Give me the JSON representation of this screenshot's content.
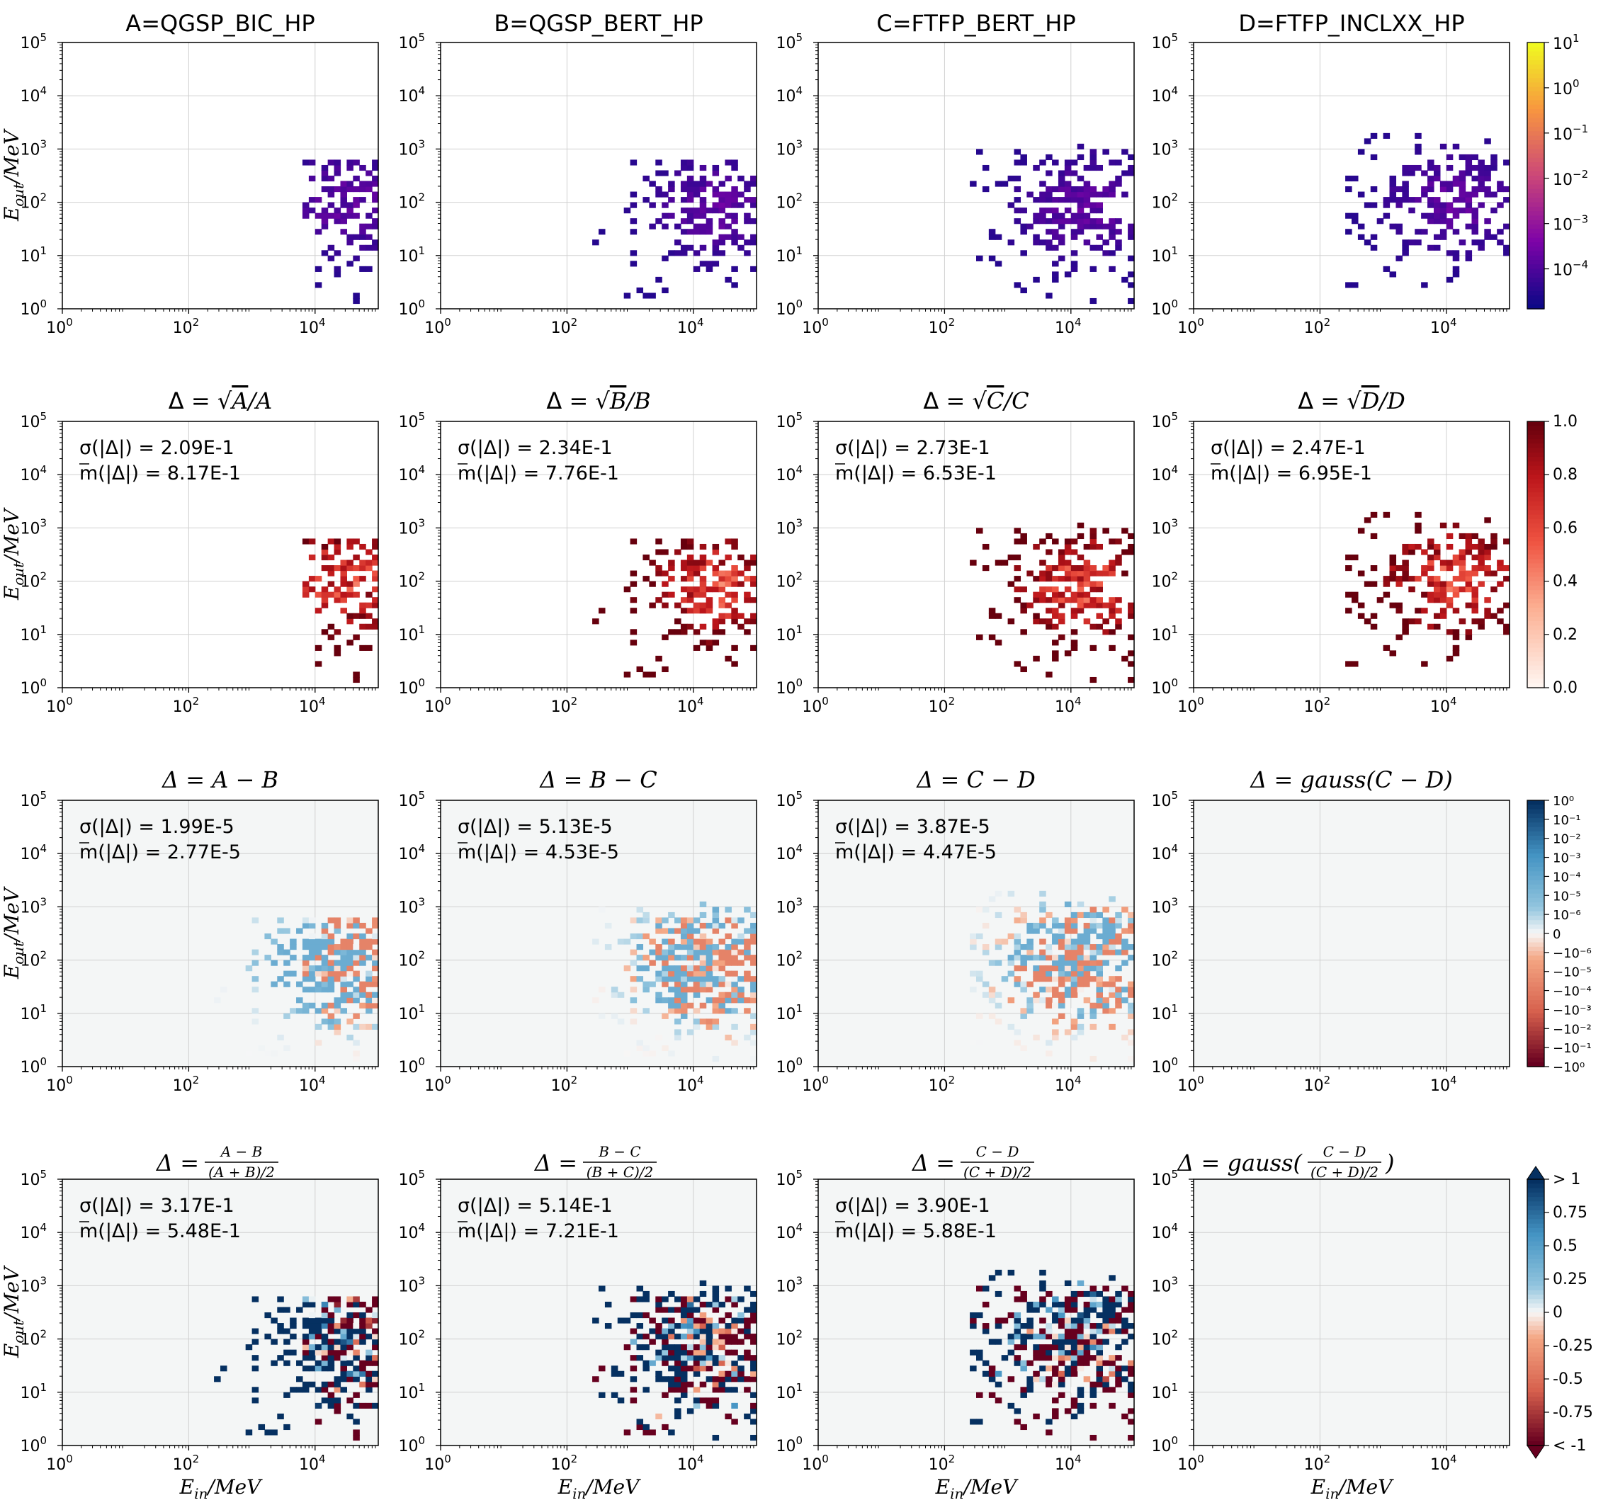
{
  "chart_data": {
    "type": "heatmap",
    "description_grid": "4x4 grid of 2D log-log histograms",
    "x_axis": {
      "label_var": "E",
      "label_sub": "in",
      "label_unit": "/MeV",
      "scale": "log",
      "xlim": [
        1,
        100000
      ],
      "ticks": [
        {
          "value": 1,
          "base": "10",
          "exp": "0"
        },
        {
          "value": 100,
          "base": "10",
          "exp": "2"
        },
        {
          "value": 10000,
          "base": "10",
          "exp": "4"
        }
      ]
    },
    "y_axis": {
      "label_var": "E",
      "label_sub": "out",
      "label_unit": "/MeV",
      "scale": "log",
      "ylim": [
        1,
        100000
      ],
      "ticks": [
        {
          "value": 1,
          "base": "10",
          "exp": "0"
        },
        {
          "value": 10,
          "base": "10",
          "exp": "1"
        },
        {
          "value": 100,
          "base": "10",
          "exp": "2"
        },
        {
          "value": 1000,
          "base": "10",
          "exp": "3"
        },
        {
          "value": 10000,
          "base": "10",
          "exp": "4"
        },
        {
          "value": 100000,
          "base": "10",
          "exp": "5"
        }
      ]
    },
    "rows": [
      {
        "row_type": "raw",
        "panels": [
          {
            "title": "A=QGSP_BIC_HP",
            "blob": {
              "xmin": 3.8,
              "xmax": 5.0,
              "ymin": 0.0,
              "ymax": 2.8,
              "cx": 4.5,
              "cy": 2.0,
              "density": 0.55,
              "seed": 11
            }
          },
          {
            "title": "B=QGSP_BERT_HP",
            "blob": {
              "xmin": 2.4,
              "xmax": 5.0,
              "ymin": 0.2,
              "ymax": 2.8,
              "cx": 4.4,
              "cy": 1.9,
              "density": 0.55,
              "seed": 23
            }
          },
          {
            "title": "C=FTFP_BERT_HP",
            "blob": {
              "xmin": 2.4,
              "xmax": 5.0,
              "ymin": 0.0,
              "ymax": 3.1,
              "cx": 4.2,
              "cy": 1.9,
              "density": 0.6,
              "seed": 37
            }
          },
          {
            "title": "D=FTFP_INCLXX_HP",
            "blob": {
              "xmin": 2.4,
              "xmax": 5.0,
              "ymin": 0.4,
              "ymax": 3.3,
              "cx": 4.1,
              "cy": 2.0,
              "density": 0.6,
              "seed": 53
            }
          }
        ],
        "colorbar": {
          "kind": "plasma_log",
          "ticks": [
            {
              "base": "10",
              "exp": "1",
              "pos": 0.0
            },
            {
              "base": "10",
              "exp": "0",
              "pos": 0.17
            },
            {
              "base": "10",
              "exp": "−1",
              "pos": 0.34
            },
            {
              "base": "10",
              "exp": "−2",
              "pos": 0.51
            },
            {
              "base": "10",
              "exp": "−3",
              "pos": 0.68
            },
            {
              "base": "10",
              "exp": "−4",
              "pos": 0.85
            }
          ]
        }
      },
      {
        "row_type": "relative_error",
        "panels": [
          {
            "title_prefix": "Δ = √",
            "title_var": "A",
            "title_suffix": "/A",
            "sigma": "σ(|Δ|) = 2.09E-1",
            "mean": "m(|Δ|) = 8.17E-1",
            "src": 0
          },
          {
            "title_prefix": "Δ = √",
            "title_var": "B",
            "title_suffix": "/B",
            "sigma": "σ(|Δ|) = 2.34E-1",
            "mean": "m(|Δ|) = 7.76E-1",
            "src": 1
          },
          {
            "title_prefix": "Δ = √",
            "title_var": "C",
            "title_suffix": "/C",
            "sigma": "σ(|Δ|) = 2.73E-1",
            "mean": "m(|Δ|) = 6.53E-1",
            "src": 2
          },
          {
            "title_prefix": "Δ = √",
            "title_var": "D",
            "title_suffix": "/D",
            "sigma": "σ(|Δ|) = 2.47E-1",
            "mean": "m(|Δ|) = 6.95E-1",
            "src": 3
          }
        ],
        "colorbar": {
          "kind": "reds",
          "ticks": [
            "1.0",
            "0.8",
            "0.6",
            "0.4",
            "0.2",
            "0.0"
          ]
        }
      },
      {
        "row_type": "difference",
        "panels": [
          {
            "title": "Δ = A − B",
            "sigma": "σ(|Δ|) = 1.99E-5",
            "mean": "m(|Δ|) = 2.77E-5",
            "src": 0
          },
          {
            "title": "Δ = B − C",
            "sigma": "σ(|Δ|) = 5.13E-5",
            "mean": "m(|Δ|) = 4.53E-5",
            "src": 1
          },
          {
            "title": "Δ = C − D",
            "sigma": "σ(|Δ|) = 3.87E-5",
            "mean": "m(|Δ|) = 4.47E-5",
            "src": 2
          },
          {
            "title": "Δ = gauss(C − D)",
            "smooth": true,
            "src": 3
          }
        ],
        "colorbar": {
          "kind": "rdbu_symlog",
          "ticks": [
            "10⁰",
            "10⁻¹",
            "10⁻²",
            "10⁻³",
            "10⁻⁴",
            "10⁻⁵",
            "10⁻⁶",
            "0",
            "−10⁻⁶",
            "−10⁻⁵",
            "−10⁻⁴",
            "−10⁻³",
            "−10⁻²",
            "−10⁻¹",
            "−10⁰"
          ]
        }
      },
      {
        "row_type": "relative_difference",
        "panels": [
          {
            "title_num": "A − B",
            "title_den": "(A + B)/2",
            "sigma": "σ(|Δ|) = 3.17E-1",
            "mean": "m(|Δ|) = 5.48E-1",
            "src": 0
          },
          {
            "title_num": "B − C",
            "title_den": "(B + C)/2",
            "sigma": "σ(|Δ|) = 5.14E-1",
            "mean": "m(|Δ|) = 7.21E-1",
            "src": 1
          },
          {
            "title_num": "C − D",
            "title_den": "(C + D)/2",
            "sigma": "σ(|Δ|) = 3.90E-1",
            "mean": "m(|Δ|) = 5.88E-1",
            "src": 2
          },
          {
            "title_num": "C − D",
            "title_den": "(C + D)/2",
            "smooth": true,
            "gauss": true,
            "src": 3
          }
        ],
        "colorbar": {
          "kind": "rdbu_ext",
          "ticks": [
            "> 1",
            "0.75",
            "0.5",
            "0.25",
            "0",
            "-0.25",
            "-0.5",
            "-0.75",
            "< -1"
          ]
        }
      }
    ]
  },
  "labels": {
    "delta": "Δ = ",
    "gauss": "gauss(",
    "close_paren": ")"
  },
  "colors": {
    "grid": "#d0d0d0",
    "background_diff": "#f4f6f6"
  }
}
